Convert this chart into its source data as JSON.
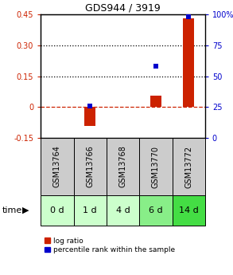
{
  "title": "GDS944 / 3919",
  "samples": [
    "GSM13764",
    "GSM13766",
    "GSM13768",
    "GSM13770",
    "GSM13772"
  ],
  "time_labels": [
    "0 d",
    "1 d",
    "4 d",
    "6 d",
    "14 d"
  ],
  "log_ratio": [
    0.0,
    -0.09,
    0.0,
    0.055,
    0.43
  ],
  "percentile_rank": [
    null,
    26,
    null,
    58,
    98
  ],
  "ylim_left": [
    -0.15,
    0.45
  ],
  "ylim_right": [
    0,
    100
  ],
  "yticks_left": [
    -0.15,
    0.0,
    0.15,
    0.3,
    0.45
  ],
  "yticks_right": [
    0,
    25,
    50,
    75,
    100
  ],
  "ytick_labels_left": [
    "-0.15",
    "0",
    "0.15",
    "0.30",
    "0.45"
  ],
  "ytick_labels_right": [
    "0",
    "25",
    "50",
    "75",
    "100%"
  ],
  "hlines": [
    0.15,
    0.3
  ],
  "bar_color": "#cc2200",
  "dot_color": "#0000cc",
  "zero_line_color": "#cc2200",
  "sample_bg_color": "#cccccc",
  "time_bg_colors": [
    "#ccffcc",
    "#ccffcc",
    "#ccffcc",
    "#88ee88",
    "#44dd44"
  ],
  "bar_width": 0.35,
  "legend_bar_label": "log ratio",
  "legend_dot_label": "percentile rank within the sample",
  "title_fontsize": 9,
  "tick_fontsize": 7,
  "sample_fontsize": 7,
  "time_fontsize": 8
}
